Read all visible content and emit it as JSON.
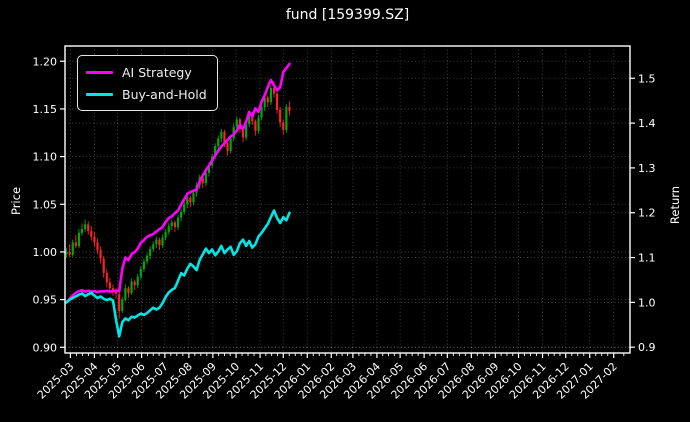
{
  "figure": {
    "title": "fund [159399.SZ]",
    "background_color": "#000000",
    "text_color": "#ffffff"
  },
  "legend": {
    "items": [
      {
        "label": "AI Strategy",
        "color": "#ff00ff"
      },
      {
        "label": "Buy-and-Hold",
        "color": "#00e5e5"
      }
    ]
  },
  "chart_data": {
    "type": "candlestick+line",
    "title": "fund [159399.SZ]",
    "ylabel_left": "Price",
    "ylabel_right": "Return",
    "grid": true,
    "legend_position": "upper left",
    "x_range": [
      "2025-02-22",
      "2027-02-22"
    ],
    "x_tick_labels": [
      "2025-03",
      "2025-04",
      "2025-05",
      "2025-06",
      "2025-07",
      "2025-08",
      "2025-09",
      "2025-10",
      "2025-11",
      "2025-12",
      "2026-01",
      "2026-02",
      "2026-03",
      "2026-04",
      "2026-05",
      "2026-06",
      "2026-07",
      "2026-08",
      "2026-09",
      "2026-10",
      "2026-11",
      "2026-12",
      "2027-01",
      "2027-02"
    ],
    "left_axis": {
      "label": "Price",
      "ticks": [
        0.9,
        0.95,
        1.0,
        1.05,
        1.1,
        1.15,
        1.2
      ],
      "range": [
        0.894,
        1.216
      ],
      "tick_format": 2
    },
    "right_axis": {
      "label": "Return",
      "ticks": [
        0.9,
        1.0,
        1.1,
        1.2,
        1.3,
        1.4,
        1.5
      ],
      "range": [
        0.887,
        1.572
      ],
      "tick_format": 1
    },
    "dates": [
      "2025-02-24",
      "2025-02-28",
      "2025-03-04",
      "2025-03-08",
      "2025-03-12",
      "2025-03-16",
      "2025-03-20",
      "2025-03-24",
      "2025-03-28",
      "2025-04-01",
      "2025-04-05",
      "2025-04-09",
      "2025-04-13",
      "2025-04-17",
      "2025-04-21",
      "2025-04-25",
      "2025-04-29",
      "2025-05-03",
      "2025-05-07",
      "2025-05-11",
      "2025-05-15",
      "2025-05-19",
      "2025-05-23",
      "2025-05-27",
      "2025-05-31",
      "2025-06-04",
      "2025-06-08",
      "2025-06-12",
      "2025-06-16",
      "2025-06-20",
      "2025-06-24",
      "2025-06-28",
      "2025-07-02",
      "2025-07-06",
      "2025-07-10",
      "2025-07-14",
      "2025-07-18",
      "2025-07-22",
      "2025-07-26",
      "2025-07-30",
      "2025-08-03",
      "2025-08-07",
      "2025-08-11",
      "2025-08-15",
      "2025-08-19",
      "2025-08-23",
      "2025-08-27",
      "2025-08-31",
      "2025-09-04",
      "2025-09-08",
      "2025-09-12",
      "2025-09-16",
      "2025-09-20",
      "2025-09-24",
      "2025-09-28",
      "2025-10-02",
      "2025-10-06",
      "2025-10-10",
      "2025-10-14",
      "2025-10-18",
      "2025-10-22",
      "2025-10-26",
      "2025-10-30",
      "2025-11-03",
      "2025-11-07",
      "2025-11-11",
      "2025-11-15",
      "2025-11-19",
      "2025-11-23",
      "2025-11-27",
      "2025-12-01",
      "2025-12-05",
      "2025-12-09"
    ],
    "candles": {
      "axis": "left",
      "up_color": "#00aa00",
      "down_color": "#ff2222",
      "open": [
        0.998,
        1.0,
        0.997,
        1.01,
        1.006,
        1.02,
        1.024,
        1.029,
        1.022,
        1.016,
        1.01,
        1.002,
        0.993,
        0.978,
        0.968,
        0.962,
        0.958,
        0.956,
        0.938,
        0.95,
        0.962,
        0.957,
        0.969,
        0.965,
        0.974,
        0.982,
        0.99,
        0.996,
        1.003,
        1.008,
        1.013,
        1.007,
        1.015,
        1.021,
        1.027,
        1.031,
        1.026,
        1.036,
        1.042,
        1.05,
        1.057,
        1.052,
        1.062,
        1.07,
        1.078,
        1.072,
        1.083,
        1.091,
        1.1,
        1.111,
        1.119,
        1.126,
        1.114,
        1.106,
        1.119,
        1.131,
        1.139,
        1.129,
        1.12,
        1.134,
        1.145,
        1.137,
        1.127,
        1.141,
        1.152,
        1.162,
        1.157,
        1.172,
        1.166,
        1.149,
        1.136,
        1.128,
        1.152
      ],
      "high": [
        1.004,
        1.008,
        1.013,
        1.018,
        1.024,
        1.03,
        1.034,
        1.032,
        1.027,
        1.021,
        1.014,
        1.006,
        0.996,
        0.982,
        0.973,
        0.966,
        0.962,
        0.958,
        0.953,
        0.966,
        0.964,
        0.972,
        0.971,
        0.977,
        0.985,
        0.993,
        0.999,
        1.006,
        1.011,
        1.016,
        1.015,
        1.018,
        1.024,
        1.03,
        1.034,
        1.033,
        1.039,
        1.045,
        1.053,
        1.06,
        1.059,
        1.065,
        1.073,
        1.081,
        1.08,
        1.086,
        1.094,
        1.103,
        1.114,
        1.122,
        1.129,
        1.128,
        1.117,
        1.122,
        1.134,
        1.142,
        1.141,
        1.132,
        1.137,
        1.148,
        1.147,
        1.139,
        1.144,
        1.155,
        1.165,
        1.164,
        1.175,
        1.179,
        1.168,
        1.152,
        1.139,
        1.155,
        1.158
      ],
      "low": [
        0.994,
        0.995,
        0.995,
        1.004,
        1.004,
        1.017,
        1.021,
        1.018,
        1.012,
        1.005,
        0.998,
        0.988,
        0.973,
        0.963,
        0.957,
        0.954,
        0.951,
        0.93,
        0.936,
        0.948,
        0.952,
        0.955,
        0.96,
        0.962,
        0.971,
        0.979,
        0.987,
        0.992,
        1.0,
        1.004,
        1.002,
        1.004,
        1.012,
        1.018,
        1.023,
        1.021,
        1.023,
        1.032,
        1.039,
        1.046,
        1.047,
        1.049,
        1.058,
        1.066,
        1.067,
        1.069,
        1.079,
        1.088,
        1.097,
        1.107,
        1.115,
        1.11,
        1.101,
        1.103,
        1.116,
        1.127,
        1.125,
        1.115,
        1.117,
        1.131,
        1.133,
        1.122,
        1.124,
        1.138,
        1.148,
        1.152,
        1.154,
        1.162,
        1.145,
        1.131,
        1.123,
        1.125,
        1.143
      ],
      "close": [
        1.0,
        0.997,
        1.01,
        1.006,
        1.02,
        1.024,
        1.029,
        1.022,
        1.016,
        1.01,
        1.002,
        0.993,
        0.978,
        0.968,
        0.962,
        0.958,
        0.956,
        0.938,
        0.95,
        0.962,
        0.957,
        0.969,
        0.965,
        0.974,
        0.982,
        0.99,
        0.996,
        1.003,
        1.008,
        1.013,
        1.007,
        1.015,
        1.021,
        1.027,
        1.031,
        1.026,
        1.036,
        1.042,
        1.05,
        1.057,
        1.052,
        1.062,
        1.07,
        1.078,
        1.072,
        1.083,
        1.091,
        1.1,
        1.111,
        1.119,
        1.126,
        1.114,
        1.106,
        1.119,
        1.131,
        1.139,
        1.129,
        1.12,
        1.134,
        1.145,
        1.137,
        1.127,
        1.141,
        1.152,
        1.162,
        1.157,
        1.172,
        1.166,
        1.149,
        1.136,
        1.128,
        1.152,
        1.148
      ]
    },
    "series": [
      {
        "name": "AI Strategy",
        "axis": "right",
        "color": "#ff00ff",
        "linewidth": 2.6,
        "values": [
          1.0,
          1.008,
          1.015,
          1.021,
          1.025,
          1.027,
          1.024,
          1.026,
          1.024,
          1.025,
          1.023,
          1.025,
          1.024,
          1.026,
          1.024,
          1.025,
          1.026,
          1.025,
          1.075,
          1.1,
          1.094,
          1.108,
          1.112,
          1.12,
          1.133,
          1.139,
          1.146,
          1.15,
          1.152,
          1.158,
          1.163,
          1.168,
          1.179,
          1.188,
          1.192,
          1.199,
          1.205,
          1.218,
          1.23,
          1.242,
          1.246,
          1.249,
          1.252,
          1.27,
          1.283,
          1.295,
          1.305,
          1.316,
          1.328,
          1.338,
          1.348,
          1.355,
          1.362,
          1.37,
          1.375,
          1.383,
          1.397,
          1.386,
          1.403,
          1.425,
          1.415,
          1.433,
          1.425,
          1.448,
          1.462,
          1.48,
          1.496,
          1.484,
          1.473,
          1.48,
          1.514,
          1.523,
          1.532
        ]
      },
      {
        "name": "Buy-and-Hold",
        "axis": "right",
        "color": "#00e5e5",
        "linewidth": 2.6,
        "values": [
          1.0,
          1.006,
          1.01,
          1.013,
          1.017,
          1.02,
          1.014,
          1.018,
          1.021,
          1.015,
          1.01,
          1.013,
          1.008,
          1.005,
          1.008,
          1.004,
          0.96,
          0.924,
          0.956,
          0.964,
          0.96,
          0.968,
          0.966,
          0.971,
          0.975,
          0.972,
          0.976,
          0.982,
          0.988,
          0.984,
          0.988,
          0.998,
          1.012,
          1.022,
          1.028,
          1.032,
          1.048,
          1.065,
          1.06,
          1.075,
          1.086,
          1.08,
          1.072,
          1.095,
          1.107,
          1.12,
          1.11,
          1.118,
          1.105,
          1.113,
          1.126,
          1.11,
          1.118,
          1.124,
          1.106,
          1.114,
          1.132,
          1.14,
          1.126,
          1.137,
          1.122,
          1.13,
          1.147,
          1.155,
          1.165,
          1.175,
          1.19,
          1.205,
          1.188,
          1.177,
          1.19,
          1.183,
          1.2
        ]
      }
    ],
    "style": {
      "grid_color": "rgba(255,255,255,0.30)",
      "spine_color": "#ffffff",
      "tick_color": "#ffffff",
      "tick_label_size": 11
    }
  }
}
